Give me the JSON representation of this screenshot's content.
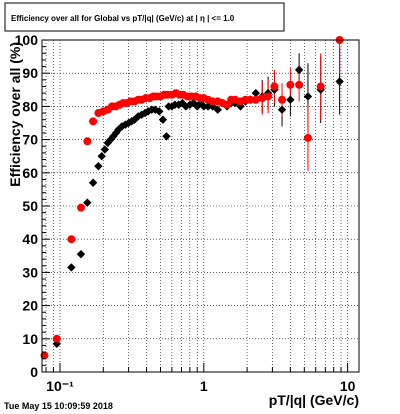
{
  "chart_data": {
    "type": "scatter",
    "title": "Efficiency over all for Global vs pT/|q| (GeV/c) at | η | <= 1.0",
    "xlabel": "pT/|q| (GeV/c)",
    "ylabel": "Efficiency over all (%)",
    "x_scale": "log",
    "xlim": [
      0.075,
      12
    ],
    "ylim": [
      0,
      100
    ],
    "grid": true,
    "x_ticks": [
      {
        "value": 0.1,
        "label": "10⁻¹"
      },
      {
        "value": 1,
        "label": "1"
      },
      {
        "value": 10,
        "label": "10"
      }
    ],
    "y_ticks": [
      0,
      10,
      20,
      30,
      40,
      50,
      60,
      70,
      80,
      90,
      100
    ],
    "series": [
      {
        "color": "#000000",
        "marker": "diamond",
        "points": [
          [
            0.095,
            8.5
          ],
          [
            0.12,
            31.5
          ],
          [
            0.14,
            35.5
          ],
          [
            0.155,
            51
          ],
          [
            0.17,
            57
          ],
          [
            0.185,
            62
          ],
          [
            0.195,
            65
          ],
          [
            0.205,
            67
          ],
          [
            0.215,
            69
          ],
          [
            0.225,
            70
          ],
          [
            0.235,
            71
          ],
          [
            0.245,
            72
          ],
          [
            0.255,
            73
          ],
          [
            0.27,
            74
          ],
          [
            0.285,
            74.5
          ],
          [
            0.3,
            75
          ],
          [
            0.315,
            75.5
          ],
          [
            0.33,
            76
          ],
          [
            0.35,
            77
          ],
          [
            0.37,
            77.5
          ],
          [
            0.39,
            78
          ],
          [
            0.41,
            78.5
          ],
          [
            0.435,
            79
          ],
          [
            0.46,
            79
          ],
          [
            0.49,
            78.5
          ],
          [
            0.52,
            76
          ],
          [
            0.55,
            71
          ],
          [
            0.57,
            80
          ],
          [
            0.6,
            80
          ],
          [
            0.63,
            80.5
          ],
          [
            0.67,
            80.5
          ],
          [
            0.71,
            81
          ],
          [
            0.75,
            80
          ],
          [
            0.8,
            80.5
          ],
          [
            0.85,
            81
          ],
          [
            0.9,
            80
          ],
          [
            0.95,
            81
          ],
          [
            1.0,
            80
          ],
          [
            1.07,
            80
          ],
          [
            1.15,
            80
          ],
          [
            1.25,
            79
          ],
          [
            1.35,
            81
          ],
          [
            1.45,
            80
          ],
          [
            1.55,
            81
          ],
          [
            1.65,
            81
          ],
          [
            1.8,
            80
          ],
          [
            1.95,
            81.5
          ],
          [
            2.1,
            82
          ],
          [
            2.3,
            84
          ],
          [
            2.55,
            83
          ],
          [
            2.8,
            84
          ],
          [
            3.1,
            85
          ],
          [
            3.5,
            79
          ],
          [
            4.0,
            82
          ],
          [
            4.6,
            91
          ],
          [
            5.3,
            83
          ],
          [
            6.5,
            85
          ],
          [
            8.8,
            87.5
          ]
        ]
      },
      {
        "color": "#ff0000",
        "marker": "circle",
        "points": [
          [
            0.078,
            5
          ],
          [
            0.095,
            10
          ],
          [
            0.12,
            40
          ],
          [
            0.14,
            49.5
          ],
          [
            0.155,
            69.5
          ],
          [
            0.17,
            75.5
          ],
          [
            0.185,
            78
          ],
          [
            0.2,
            78.5
          ],
          [
            0.215,
            79
          ],
          [
            0.23,
            80
          ],
          [
            0.245,
            80
          ],
          [
            0.26,
            80.5
          ],
          [
            0.275,
            81
          ],
          [
            0.29,
            81
          ],
          [
            0.31,
            81.5
          ],
          [
            0.33,
            81.5
          ],
          [
            0.35,
            82
          ],
          [
            0.37,
            82
          ],
          [
            0.395,
            82.5
          ],
          [
            0.42,
            82.5
          ],
          [
            0.445,
            83
          ],
          [
            0.47,
            83
          ],
          [
            0.5,
            83
          ],
          [
            0.53,
            83.5
          ],
          [
            0.56,
            83.5
          ],
          [
            0.6,
            83.5
          ],
          [
            0.64,
            84
          ],
          [
            0.68,
            83.5
          ],
          [
            0.72,
            83.5
          ],
          [
            0.77,
            83
          ],
          [
            0.82,
            83
          ],
          [
            0.88,
            83
          ],
          [
            0.94,
            82.5
          ],
          [
            1.0,
            82.5
          ],
          [
            1.07,
            82
          ],
          [
            1.15,
            81.5
          ],
          [
            1.25,
            81.5
          ],
          [
            1.35,
            81
          ],
          [
            1.45,
            80.5
          ],
          [
            1.55,
            82
          ],
          [
            1.65,
            82
          ],
          [
            1.8,
            81.5
          ],
          [
            1.95,
            82
          ],
          [
            2.1,
            82
          ],
          [
            2.3,
            82
          ],
          [
            2.55,
            82.5
          ],
          [
            2.8,
            83
          ],
          [
            3.1,
            86
          ],
          [
            3.5,
            82
          ],
          [
            4.0,
            86.5
          ],
          [
            4.6,
            86.5
          ],
          [
            5.3,
            70.5
          ],
          [
            6.5,
            86
          ],
          [
            8.8,
            100
          ]
        ]
      }
    ]
  },
  "footer": {
    "timestamp": "Tue May 15 10:09:59 2018"
  }
}
